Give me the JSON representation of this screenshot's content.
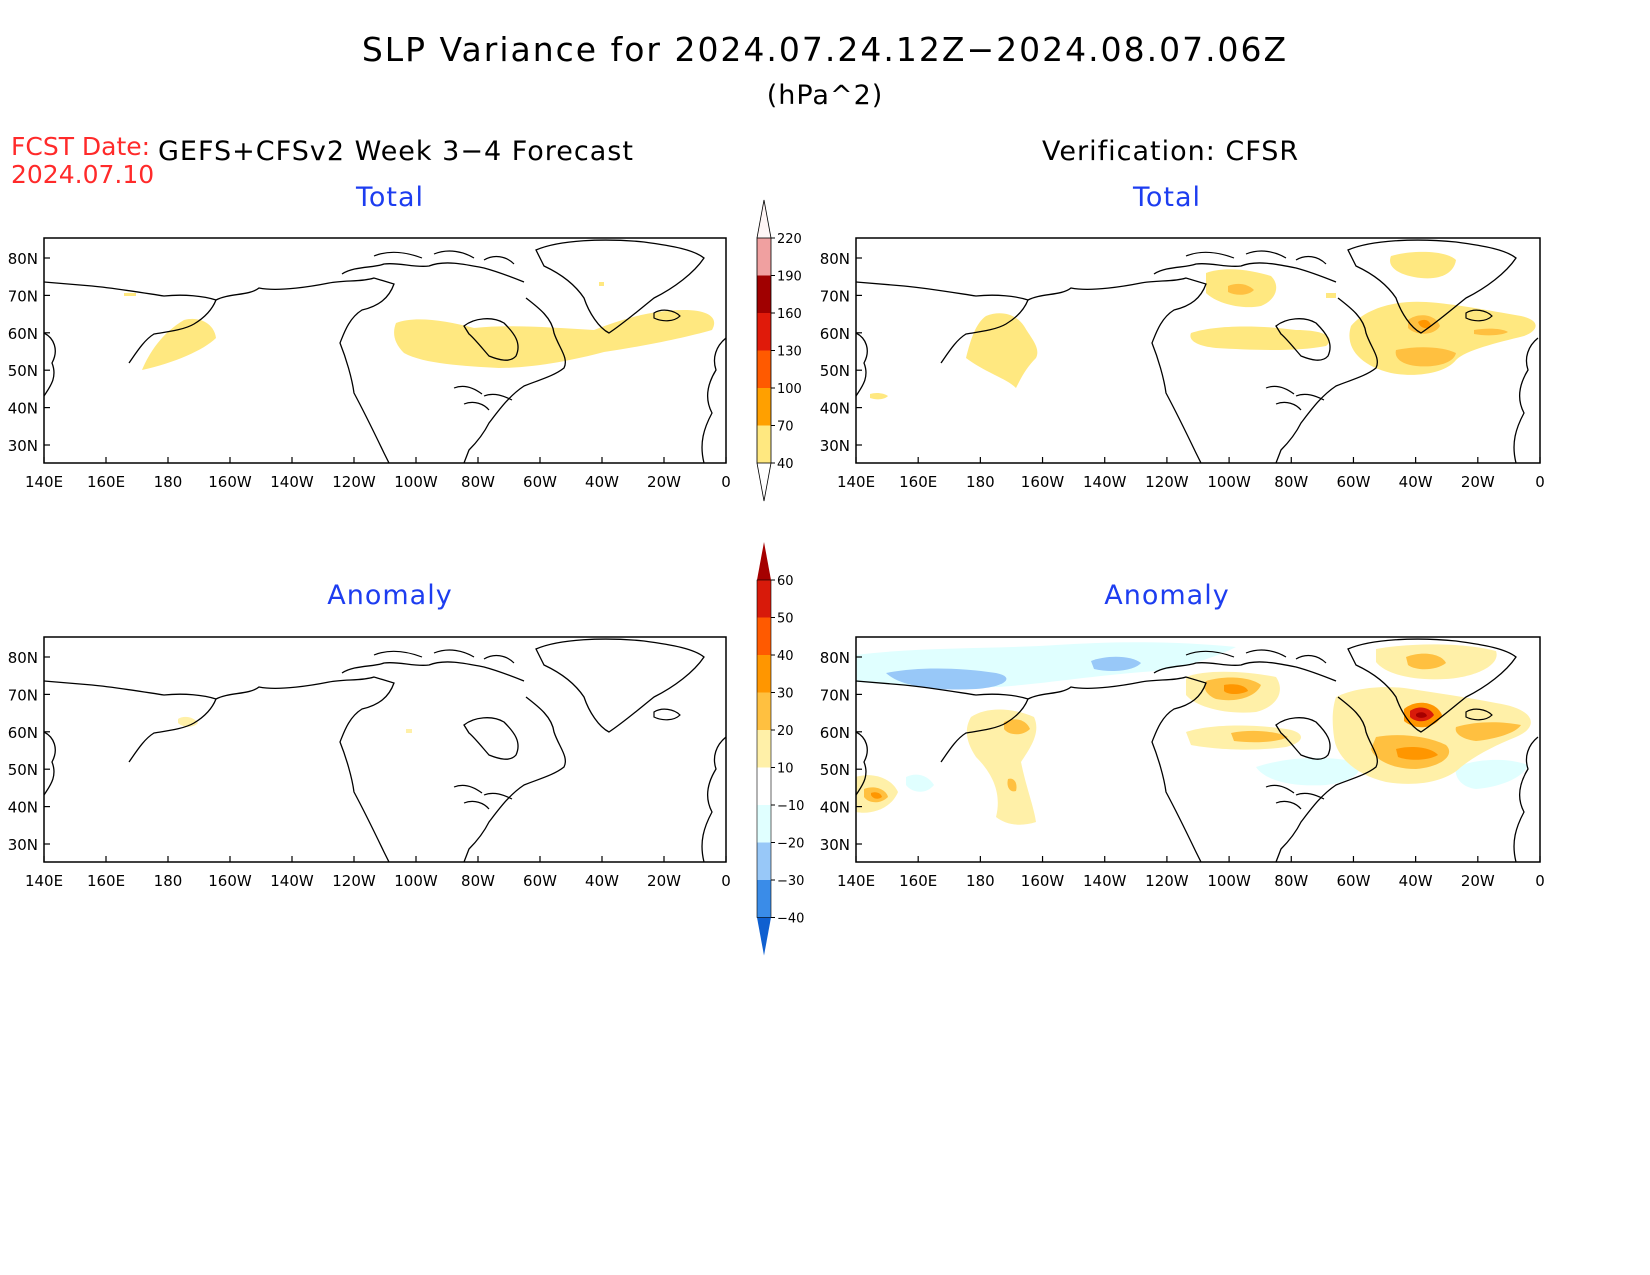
{
  "title": "SLP Variance for 2024.07.24.12Z−2024.08.07.06Z",
  "units": "(hPa^2)",
  "fcst_date_label": "FCST Date:",
  "fcst_date_value": "2024.07.10",
  "left_header": "GEFS+CFSv2 Week 3−4 Forecast",
  "right_header": "Verification: CFSR",
  "panels": [
    {
      "title": "Total"
    },
    {
      "title": "Total"
    },
    {
      "title": "Anomaly"
    },
    {
      "title": "Anomaly"
    }
  ],
  "axes": {
    "lon_labels": [
      "140E",
      "160E",
      "180",
      "160W",
      "140W",
      "120W",
      "100W",
      "80W",
      "60W",
      "40W",
      "20W",
      "0"
    ],
    "lat_labels": [
      "80N",
      "70N",
      "60N",
      "50N",
      "40N",
      "30N"
    ]
  },
  "colorbar_total": {
    "levels": [
      "40",
      "70",
      "100",
      "130",
      "160",
      "190",
      "220"
    ],
    "colors": [
      "#ffe880",
      "#ffa000",
      "#ff5a00",
      "#e01a0a",
      "#a00000",
      "#f0a0a0",
      "#fadcdc"
    ]
  },
  "colorbar_anomaly": {
    "levels": [
      "60",
      "50",
      "40",
      "30",
      "20",
      "10",
      "−10",
      "−20",
      "−30",
      "−40"
    ],
    "colors": {
      "above_60": "#a50000",
      "50_60": "#d81a0a",
      "40_50": "#ff5a00",
      "30_40": "#ff9600",
      "20_30": "#ffc040",
      "10_20": "#fff0a8",
      "neutral": "#ffffff",
      "m20_m10": "#e0ffff",
      "m30_m20": "#98c8f8",
      "m40_m30": "#3a8ce8",
      "below_m40": "#1060d0"
    }
  }
}
